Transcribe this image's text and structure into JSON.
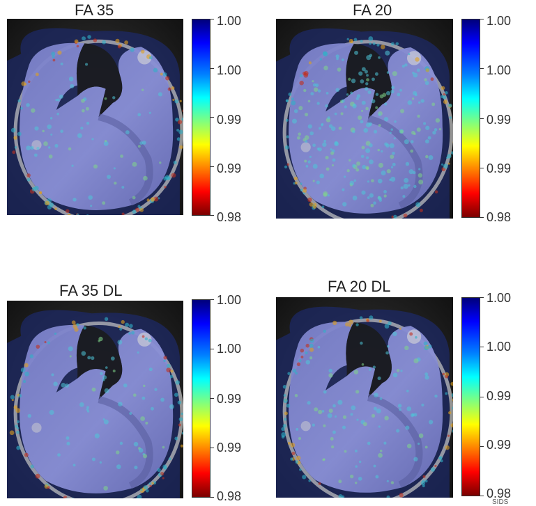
{
  "panels": [
    {
      "title": "FA 35",
      "ticks": [
        "1.00",
        "1.00",
        "0.99",
        "0.99",
        "0.98"
      ]
    },
    {
      "title": "FA 20",
      "ticks": [
        "1.00",
        "1.00",
        "0.99",
        "0.99",
        "0.98"
      ]
    },
    {
      "title": "FA 35 DL",
      "ticks": [
        "1.00",
        "1.00",
        "0.99",
        "0.99",
        "0.98"
      ]
    },
    {
      "title": "FA 20 DL",
      "ticks": [
        "1.00",
        "1.00",
        "0.99",
        "0.99",
        "0.98"
      ]
    }
  ],
  "corner_text": "SIDS",
  "colormap": [
    "#00007a",
    "#0000ff",
    "#0080ff",
    "#00ffff",
    "#7fff7f",
    "#ffff00",
    "#ff8000",
    "#ff0000",
    "#7a0000"
  ]
}
